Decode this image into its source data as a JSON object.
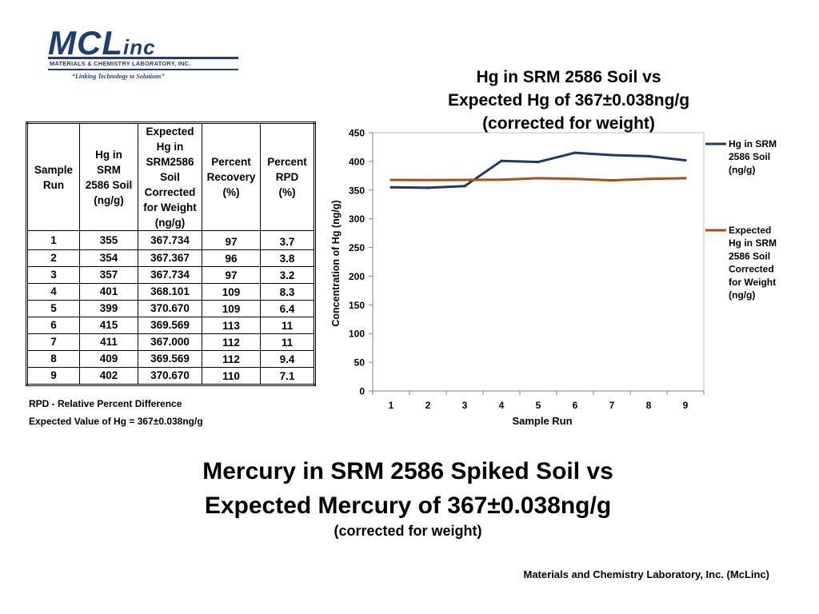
{
  "logo": {
    "name": "MCL",
    "suffix": "inc",
    "company": "MATERIALS & CHEMISTRY LABORATORY, INC.",
    "tagline": "“Linking Technology to Solutions”"
  },
  "table": {
    "headers": [
      [
        "Sample",
        "Run"
      ],
      [
        "Hg in",
        "SRM",
        "2586 Soil",
        "(ng/g)"
      ],
      [
        "Expected",
        "Hg in",
        "SRM2586",
        "Soil",
        "Corrected",
        "for Weight",
        "(ng/g)"
      ],
      [
        "Percent",
        "Recovery",
        "(%)"
      ],
      [
        "Percent",
        "RPD",
        "(%)"
      ]
    ],
    "rows": [
      [
        "1",
        "355",
        "367.734",
        "97",
        "3.7"
      ],
      [
        "2",
        "354",
        "367.367",
        "96",
        "3.8"
      ],
      [
        "3",
        "357",
        "367.734",
        "97",
        "3.2"
      ],
      [
        "4",
        "401",
        "368.101",
        "109",
        "8.3"
      ],
      [
        "5",
        "399",
        "370.670",
        "109",
        "6.4"
      ],
      [
        "6",
        "415",
        "369.569",
        "113",
        "11"
      ],
      [
        "7",
        "411",
        "367.000",
        "112",
        "11"
      ],
      [
        "8",
        "409",
        "369.569",
        "112",
        "9.4"
      ],
      [
        "9",
        "402",
        "370.670",
        "110",
        "7.1"
      ]
    ]
  },
  "notes": {
    "rpd": "RPD - Relative Percent Difference",
    "expected": "Expected Value of Hg = 367±0.038ng/g"
  },
  "chart_title_lines": [
    "Hg in SRM 2586 Soil vs",
    "Expected Hg of 367±0.038ng/g",
    "(corrected for weight)"
  ],
  "chart_data": {
    "type": "line",
    "title": "Hg in SRM 2586 Soil vs Expected Hg of 367±0.038ng/g (corrected for weight)",
    "xlabel": "Sample Run",
    "ylabel": "Concentration of Hg (ng/g)",
    "categories": [
      "1",
      "2",
      "3",
      "4",
      "5",
      "6",
      "7",
      "8",
      "9"
    ],
    "ylim": [
      0,
      450
    ],
    "yticks": [
      0,
      50,
      100,
      150,
      200,
      250,
      300,
      350,
      400,
      450
    ],
    "grid": false,
    "legend_position": "right",
    "series": [
      {
        "name": "Hg in SRM 2586 Soil (ng/g)",
        "legend_lines": [
          "Hg in SRM",
          "2586 Soil",
          "(ng/g)"
        ],
        "color": "#1f3864",
        "values": [
          355,
          354,
          357,
          401,
          399,
          415,
          411,
          409,
          402
        ]
      },
      {
        "name": "Expected Hg in SRM 2586 Soil Corrected for Weight (ng/g)",
        "legend_lines": [
          "Expected",
          "Hg in SRM",
          "2586 Soil",
          "Corrected",
          "for Weight",
          "(ng/g)"
        ],
        "color": "#a0521d",
        "values": [
          367.734,
          367.367,
          367.734,
          368.101,
          370.67,
          369.569,
          367.0,
          369.569,
          370.67
        ]
      }
    ]
  },
  "big_title_lines": [
    "Mercury in SRM 2586 Spiked Soil vs",
    "Expected Mercury of 367±0.038ng/g"
  ],
  "big_subtitle": "(corrected for weight)",
  "footer": "Materials and Chemistry Laboratory, Inc. (McLinc)"
}
